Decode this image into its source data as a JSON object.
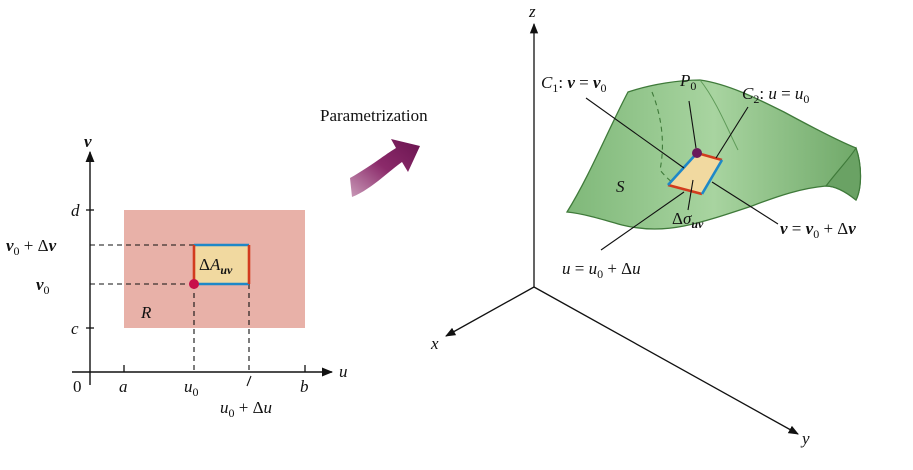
{
  "colors": {
    "region_fill": "#e8b1a8",
    "patch_fill": "#f1d9a0",
    "surface_fill": "#8fc48a",
    "surface_edge": "#3f7a3a",
    "arrow_fill": "#8b2a6a",
    "edge_blue": "#1e88c8",
    "edge_red": "#d23b1e",
    "point": "#c8104a",
    "p0_point": "#6a1a5a"
  },
  "left_plot": {
    "axis_v": "v",
    "axis_u": "u",
    "origin": "0",
    "tick_d": "d",
    "tick_c": "c",
    "tick_a": "a",
    "tick_b": "b",
    "v0_dv": {
      "var": "v",
      "sub": "0",
      "rest": " + Δ",
      "var2": "v"
    },
    "v0": {
      "var": "v",
      "sub": "0"
    },
    "u0": {
      "var": "u",
      "sub": "0"
    },
    "u0_du": {
      "var": "u",
      "sub": "0",
      "rest": " + Δ",
      "var2": "u"
    },
    "region": "R",
    "patch": {
      "pre": "Δ",
      "var": "A",
      "sub": "uv"
    }
  },
  "arrow_label": "Parametrization",
  "right_plot": {
    "axis_z": "z",
    "axis_x": "x",
    "axis_y": "y",
    "surface": "S",
    "p0": {
      "var": "P",
      "sub": "0"
    },
    "c1": {
      "var": "C",
      "sub": "1",
      "rest1": ": ",
      "var2": "v",
      "rest2": " = ",
      "var3": "v",
      "sub3": "0"
    },
    "c2": {
      "var": "C",
      "sub": "2",
      "rest1": ": ",
      "var2": "u",
      "rest2": " = ",
      "var3": "u",
      "sub3": "0"
    },
    "patch": {
      "pre": "Δ",
      "var": "σ",
      "sub": "uv"
    },
    "v_eq": {
      "var": "v",
      "rest1": " = ",
      "var2": "v",
      "sub2": "0",
      "rest2": " + Δ",
      "var3": "v"
    },
    "u_eq": {
      "var": "u",
      "rest1": " = ",
      "var2": "u",
      "sub2": "0",
      "rest2": " + Δ",
      "var3": "u"
    }
  }
}
